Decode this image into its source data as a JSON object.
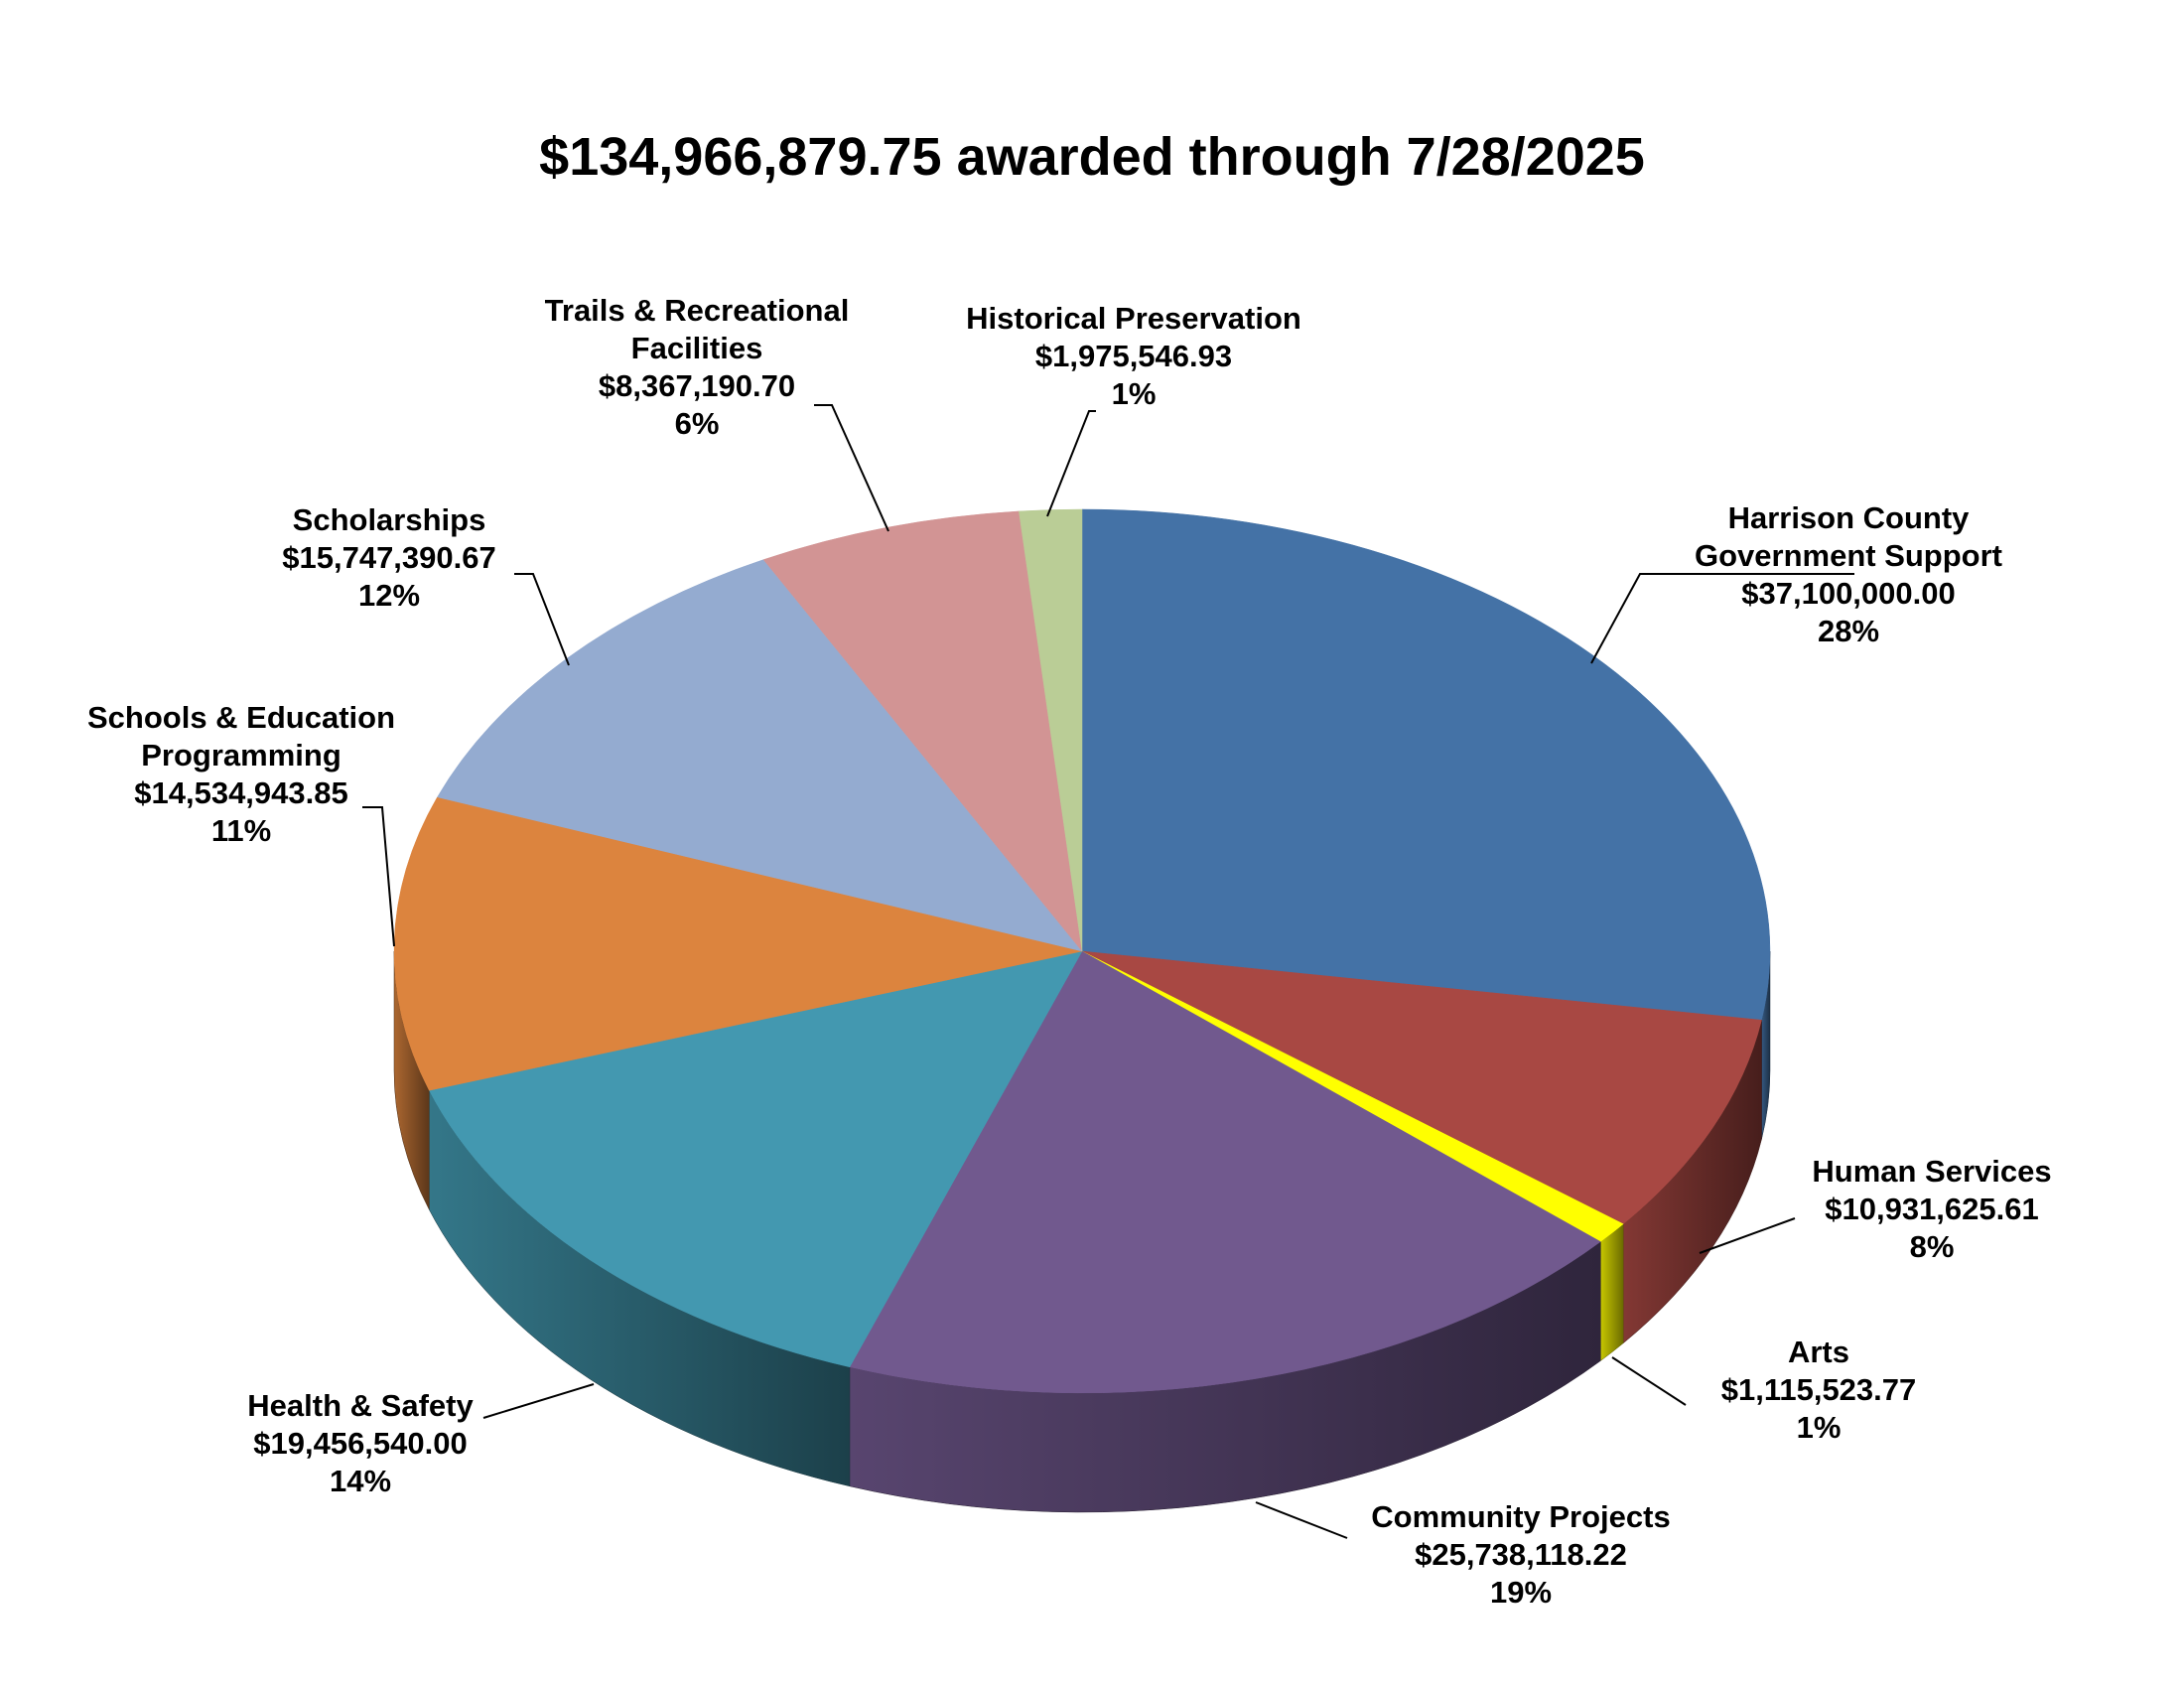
{
  "chart_data": {
    "type": "pie",
    "title": "$134,966,879.75 awarded through 7/28/2025",
    "slices": [
      {
        "name": "Harrison County Government Support",
        "name_lines": [
          "Harrison County",
          "Government Support"
        ],
        "amount_label": "$37,100,000.00",
        "value": 37100000.0,
        "percent_label": "28%",
        "color": "#4472A6"
      },
      {
        "name": "Human Services",
        "name_lines": [
          "Human Services"
        ],
        "amount_label": "$10,931,625.61",
        "value": 10931625.61,
        "percent_label": "8%",
        "color": "#A84843"
      },
      {
        "name": "Arts",
        "name_lines": [
          "Arts"
        ],
        "amount_label": "$1,115,523.77",
        "value": 1115523.77,
        "percent_label": "1%",
        "color": "#FFFF00"
      },
      {
        "name": "Community Projects",
        "name_lines": [
          "Community Projects"
        ],
        "amount_label": "$25,738,118.22",
        "value": 25738118.22,
        "percent_label": "19%",
        "color": "#71598E"
      },
      {
        "name": "Health & Safety",
        "name_lines": [
          "Health & Safety"
        ],
        "amount_label": "$19,456,540.00",
        "value": 19456540.0,
        "percent_label": "14%",
        "color": "#4398B0"
      },
      {
        "name": "Schools & Education Programming",
        "name_lines": [
          "Schools & Education",
          "Programming"
        ],
        "amount_label": "$14,534,943.85",
        "value": 14534943.85,
        "percent_label": "11%",
        "color": "#DC843E"
      },
      {
        "name": "Scholarships",
        "name_lines": [
          "Scholarships"
        ],
        "amount_label": "$15,747,390.67",
        "value": 15747390.67,
        "percent_label": "12%",
        "color": "#94ABD0"
      },
      {
        "name": "Trails & Recreational Facilities",
        "name_lines": [
          "Trails & Recreational",
          "Facilities"
        ],
        "amount_label": "$8,367,190.70",
        "value": 8367190.7,
        "percent_label": "6%",
        "color": "#D29494"
      },
      {
        "name": "Historical Preservation",
        "name_lines": [
          "Historical Preservation"
        ],
        "amount_label": "$1,975,546.93",
        "value": 1975546.93,
        "percent_label": "1%",
        "color": "#BACD96"
      }
    ],
    "start_angle_note": "clockwise from 12 o'clock",
    "legend": "none"
  }
}
